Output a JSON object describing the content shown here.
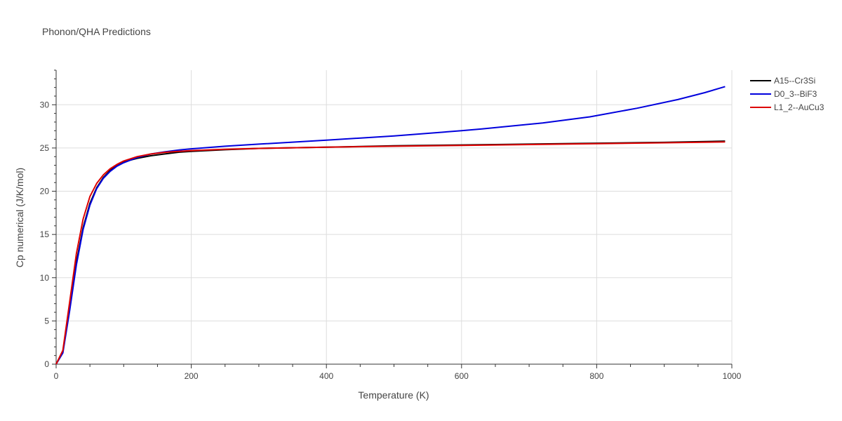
{
  "chart_data": {
    "type": "line",
    "title": "Phonon/QHA Predictions",
    "xlabel": "Temperature (K)",
    "ylabel": "Cp numerical (J/K/mol)",
    "xlim": [
      0,
      1000
    ],
    "ylim": [
      0,
      34
    ],
    "xticks": [
      0,
      200,
      400,
      600,
      800,
      1000
    ],
    "yticks": [
      0,
      5,
      10,
      15,
      20,
      25,
      30
    ],
    "grid": true,
    "legend_position": "top-right",
    "series": [
      {
        "name": "A15--Cr3Si",
        "color": "#000000",
        "x": [
          0,
          10,
          20,
          30,
          40,
          50,
          60,
          70,
          80,
          90,
          100,
          120,
          140,
          160,
          180,
          200,
          250,
          300,
          400,
          500,
          600,
          700,
          800,
          900,
          990
        ],
        "y": [
          0,
          1.5,
          6.5,
          11.8,
          15.8,
          18.6,
          20.4,
          21.6,
          22.4,
          23.0,
          23.4,
          23.8,
          24.1,
          24.3,
          24.5,
          24.6,
          24.8,
          24.95,
          25.1,
          25.25,
          25.35,
          25.45,
          25.55,
          25.65,
          25.8
        ]
      },
      {
        "name": "D0_3--BiF3",
        "color": "#0000dd",
        "x": [
          0,
          10,
          20,
          30,
          40,
          50,
          60,
          70,
          80,
          90,
          100,
          120,
          140,
          160,
          180,
          200,
          250,
          300,
          400,
          500,
          600,
          630,
          720,
          790,
          860,
          920,
          960,
          990
        ],
        "y": [
          0,
          1.3,
          6.2,
          11.5,
          15.6,
          18.4,
          20.3,
          21.5,
          22.3,
          22.9,
          23.3,
          23.9,
          24.3,
          24.55,
          24.75,
          24.9,
          25.2,
          25.45,
          25.9,
          26.4,
          27.0,
          27.2,
          27.9,
          28.6,
          29.6,
          30.6,
          31.4,
          32.1
        ]
      },
      {
        "name": "L1_2--AuCu3",
        "color": "#dd0000",
        "x": [
          0,
          10,
          20,
          30,
          40,
          50,
          60,
          70,
          80,
          90,
          100,
          120,
          140,
          160,
          180,
          200,
          250,
          300,
          400,
          500,
          600,
          700,
          800,
          900,
          990
        ],
        "y": [
          0,
          1.6,
          7.2,
          12.8,
          16.8,
          19.4,
          20.9,
          21.9,
          22.6,
          23.1,
          23.5,
          24.0,
          24.3,
          24.5,
          24.6,
          24.7,
          24.85,
          24.95,
          25.1,
          25.2,
          25.3,
          25.4,
          25.5,
          25.6,
          25.7
        ]
      }
    ]
  }
}
